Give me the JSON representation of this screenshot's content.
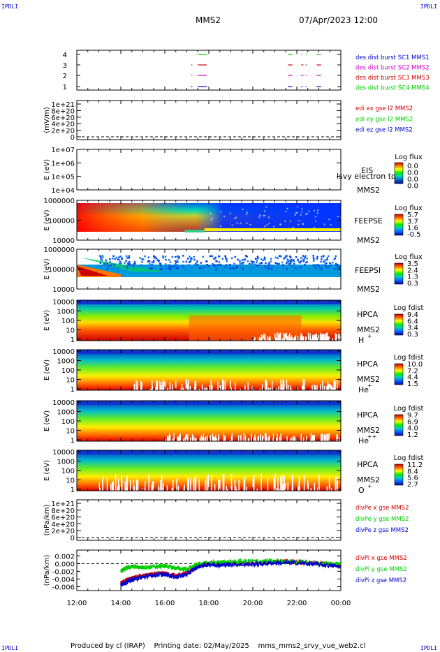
{
  "corner_tl": "IPDLI",
  "corner_tr": "IPDLI",
  "corner_bl": "IPDLI",
  "corner_br": "IPDLI",
  "title": "MMS2",
  "date": "07/Apr/2023 12:00",
  "footer": "Produced by cl (IRAP)    Printing date: 02/May/2025    mms_mms2_srvy_vue_web2.cl",
  "colors": {
    "blue": "#0000cc",
    "magenta": "#cc00cc",
    "red": "#cc0000",
    "green": "#00cc00",
    "black": "#000000"
  },
  "chart_data": {
    "type": "line",
    "x_ticks": [
      "12:00",
      "14:00",
      "16:00",
      "18:00",
      "20:00",
      "22:00",
      "00:00"
    ],
    "x_range_hours": [
      12,
      24
    ],
    "panels": [
      {
        "id": "burst",
        "yticks": [
          "4",
          "3",
          "2",
          "1"
        ],
        "legend": [
          {
            "text": "des dist burst SC1 MMS1",
            "color": "blue"
          },
          {
            "text": "des dist burst SC2 MMS2",
            "color": "magenta"
          },
          {
            "text": "des dist burst SC3 MMS3",
            "color": "red"
          },
          {
            "text": "des dist burst SC4 MMS4",
            "color": "green"
          }
        ],
        "bursts": [
          {
            "sc": 4,
            "intervals": [
              [
                17.5,
                17.9
              ],
              [
                21.6,
                21.8
              ],
              [
                22.2,
                22.25
              ],
              [
                22.4,
                22.45
              ],
              [
                22.9,
                23.1
              ]
            ],
            "color": "green"
          },
          {
            "sc": 3,
            "intervals": [
              [
                17.2,
                17.25
              ],
              [
                17.5,
                17.9
              ],
              [
                21.6,
                21.8
              ],
              [
                22.2,
                22.3
              ],
              [
                22.4,
                22.45
              ],
              [
                22.9,
                23.1
              ]
            ],
            "color": "red"
          },
          {
            "sc": 2,
            "intervals": [
              [
                17.2,
                17.25
              ],
              [
                17.5,
                17.9
              ],
              [
                21.6,
                21.8
              ],
              [
                22.2,
                22.3
              ],
              [
                22.4,
                22.45
              ],
              [
                22.9,
                23.1
              ]
            ],
            "color": "magenta"
          },
          {
            "sc": 1,
            "intervals": [
              [
                17.2,
                17.25
              ],
              [
                17.5,
                17.9
              ],
              [
                21.6,
                21.8
              ],
              [
                22.2,
                22.25
              ],
              [
                22.4,
                22.45
              ],
              [
                22.9,
                23.1
              ]
            ],
            "color": "blue"
          }
        ]
      },
      {
        "id": "edi",
        "ylabel": "(mV/m)",
        "yticks": [
          "1e+21",
          "8e+20",
          "6e+20",
          "4e+20",
          "2e+20",
          "0"
        ],
        "legend": [
          {
            "text": "edi ex gse l2 MMS2",
            "color": "red"
          },
          {
            "text": "edi ey gse l2 MMS2",
            "color": "green"
          },
          {
            "text": "edi ez gse l2 MMS2",
            "color": "blue"
          }
        ]
      },
      {
        "id": "eis",
        "ylabel": "E (eV)",
        "yticks": [
          "1e+07",
          "1e+06",
          "1e+05",
          "1e+04"
        ],
        "inst": [
          "EIS",
          "MMS2"
        ],
        "overlay_text": "lsvy electron to",
        "cbar_title": "Log flux",
        "cbar_ticks": [
          "0.0",
          "0.0",
          "0.0",
          "0.0"
        ]
      },
      {
        "id": "feepse",
        "ylabel": "E (eV)",
        "yticks": [
          "1000000",
          "100000",
          "10000"
        ],
        "inst": [
          "FEEPSE",
          "MMS2"
        ],
        "cbar_title": "Log flux",
        "cbar_ticks": [
          "5.7",
          "3.7",
          "1.6",
          "-0.5"
        ]
      },
      {
        "id": "feepsi",
        "ylabel": "E (eV)",
        "yticks": [
          "1000000",
          "100000",
          "10000"
        ],
        "inst": [
          "FEEPSI",
          "MMS2"
        ],
        "cbar_title": "Log flux",
        "cbar_ticks": [
          "3.5",
          "2.4",
          "1.3",
          "0.3"
        ]
      },
      {
        "id": "hpca_h",
        "ylabel": "E (eV)",
        "yticks": [
          "10000",
          "1000",
          "100",
          "10",
          "1"
        ],
        "inst": [
          "HPCA",
          "MMS2"
        ],
        "species": "H",
        "charge": "+",
        "cbar_title": "Log fdist",
        "cbar_ticks": [
          "9.4",
          "6.4",
          "3.4",
          "0.3"
        ]
      },
      {
        "id": "hpca_he",
        "ylabel": "E (eV)",
        "yticks": [
          "10000",
          "1000",
          "100",
          "10",
          "1"
        ],
        "inst": [
          "HPCA",
          "MMS2"
        ],
        "species": "He",
        "charge": "+",
        "cbar_title": "Log fdist",
        "cbar_ticks": [
          "10.0",
          "7.2",
          "4.4",
          "1.5"
        ]
      },
      {
        "id": "hpca_hepp",
        "ylabel": "E (eV)",
        "yticks": [
          "10000",
          "1000",
          "100",
          "10",
          "1"
        ],
        "inst": [
          "HPCA",
          "MMS2"
        ],
        "species": "He",
        "charge": "++",
        "cbar_title": "Log fdist",
        "cbar_ticks": [
          "9.7",
          "6.9",
          "4.0",
          "1.2"
        ]
      },
      {
        "id": "hpca_o",
        "ylabel": "E (eV)",
        "yticks": [
          "10000",
          "1000",
          "100",
          "10",
          "1"
        ],
        "inst": [
          "HPCA",
          "MMS2"
        ],
        "species": "O",
        "charge": "+",
        "cbar_title": "Log fdist",
        "cbar_ticks": [
          "11.2",
          "8.4",
          "5.6",
          "2.7"
        ]
      },
      {
        "id": "divpe",
        "ylabel": "(nPa/km)",
        "yticks": [
          "1e+21",
          "8e+20",
          "6e+20",
          "4e+20",
          "2e+20",
          "0"
        ],
        "legend": [
          {
            "text": "divPe x gse MMS2",
            "color": "red"
          },
          {
            "text": "divPe y gse MMS2",
            "color": "green"
          },
          {
            "text": "divPe z gse MMS2",
            "color": "blue"
          }
        ]
      },
      {
        "id": "divpi",
        "ylabel": "(nPa/km)",
        "yticks": [
          "0.002",
          "0.000",
          "-0.002",
          "-0.004",
          "-0.006"
        ],
        "ylim": [
          -0.007,
          0.0035
        ],
        "legend": [
          {
            "text": "divPi x gse MMS2",
            "color": "red"
          },
          {
            "text": "divPi y gse MMS2",
            "color": "green"
          },
          {
            "text": "divPi z gse MMS2",
            "color": "blue"
          }
        ],
        "series": [
          {
            "name": "divPi x gse MMS2",
            "color": "red",
            "x": [
              14.0,
              14.2,
              14.5,
              15.0,
              15.5,
              16.0,
              16.5,
              17.0,
              17.5,
              18.0,
              18.5,
              19.0,
              20.0,
              21.0,
              22.0,
              23.0,
              24.0
            ],
            "y": [
              -0.005,
              -0.0045,
              -0.0038,
              -0.0032,
              -0.0028,
              -0.0025,
              -0.0032,
              -0.0025,
              -0.0005,
              0.0,
              -0.0002,
              0.0,
              0.0,
              0.0005,
              0.0005,
              0.0,
              -0.0005
            ]
          },
          {
            "name": "divPi y gse MMS2",
            "color": "green",
            "x": [
              14.0,
              14.2,
              14.5,
              15.0,
              15.5,
              16.0,
              16.5,
              17.0,
              17.5,
              18.0,
              18.5,
              19.0,
              20.0,
              21.0,
              22.0,
              23.0,
              24.0
            ],
            "y": [
              -0.002,
              -0.0012,
              -0.0008,
              -0.001,
              -0.0008,
              -0.0006,
              -0.0012,
              -0.0015,
              -0.0002,
              0.0002,
              0.0003,
              0.0004,
              0.0006,
              0.0006,
              0.0005,
              0.0001,
              0.0
            ]
          },
          {
            "name": "divPi z gse MMS2",
            "color": "blue",
            "x": [
              14.0,
              14.2,
              14.5,
              15.0,
              15.5,
              16.0,
              16.5,
              17.0,
              17.5,
              18.0,
              18.5,
              19.0,
              20.0,
              21.0,
              22.0,
              23.0,
              24.0
            ],
            "y": [
              -0.0055,
              -0.005,
              -0.0042,
              -0.0035,
              -0.003,
              -0.0028,
              -0.0035,
              -0.0028,
              -0.0008,
              -0.0002,
              -0.0004,
              -0.0002,
              -0.0002,
              0.0002,
              0.0002,
              -0.0002,
              -0.0008
            ]
          }
        ]
      }
    ]
  }
}
